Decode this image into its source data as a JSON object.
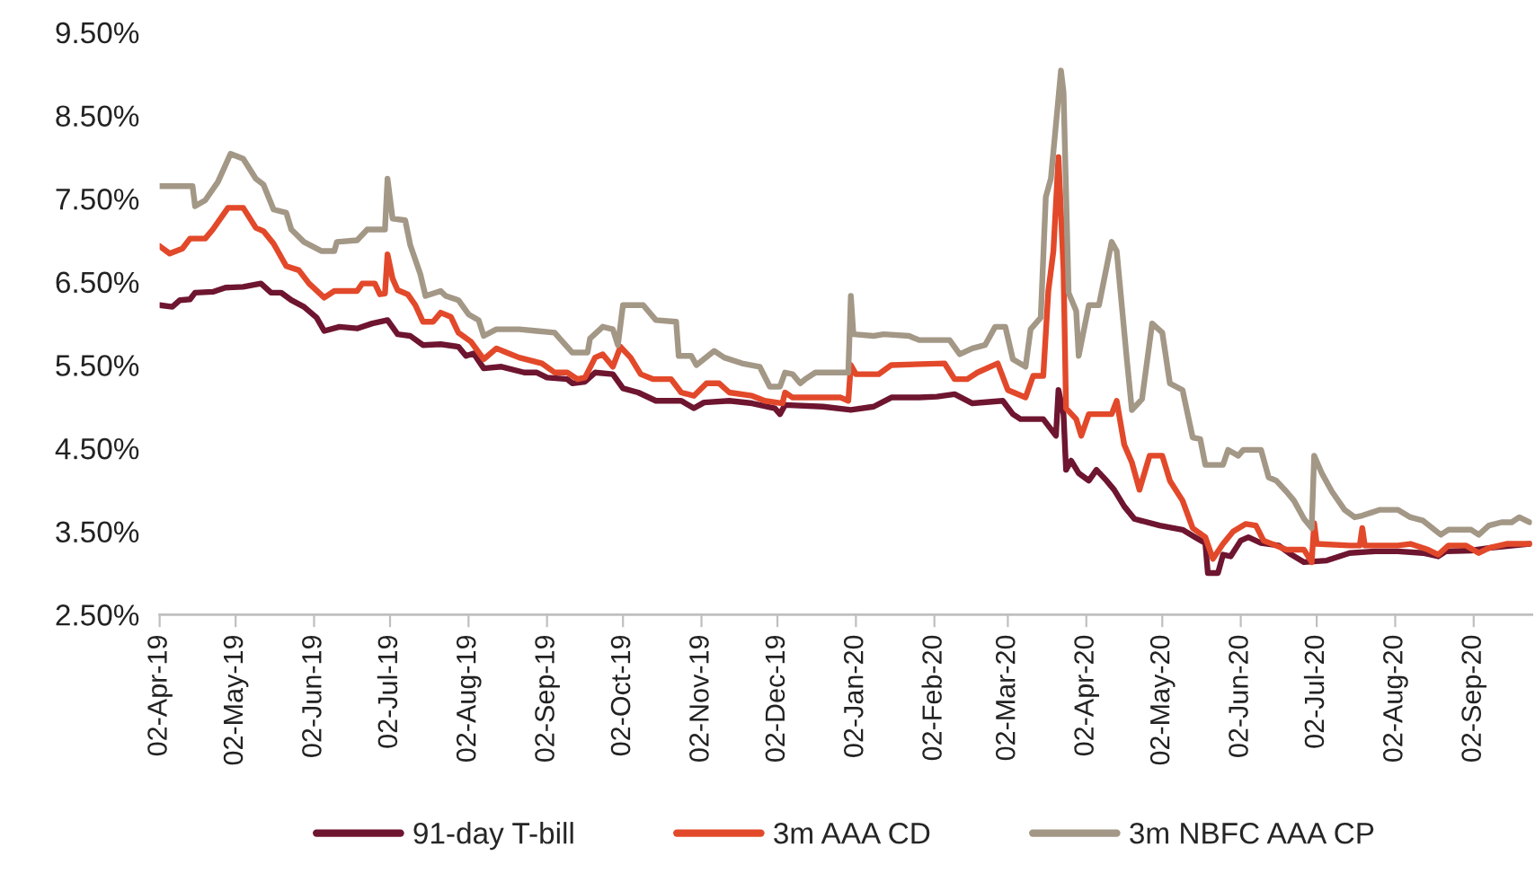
{
  "chart_data": {
    "type": "line",
    "xlim": [
      "2019-04-02",
      "2020-09-25"
    ],
    "xticks": [
      {
        "value": "2019-04-02",
        "label": "02-Apr-19"
      },
      {
        "value": "2019-05-02",
        "label": "02-May-19"
      },
      {
        "value": "2019-06-02",
        "label": "02-Jun-19"
      },
      {
        "value": "2019-07-02",
        "label": "02-Jul-19"
      },
      {
        "value": "2019-08-02",
        "label": "02-Aug-19"
      },
      {
        "value": "2019-09-02",
        "label": "02-Sep-19"
      },
      {
        "value": "2019-10-02",
        "label": "02-Oct-19"
      },
      {
        "value": "2019-11-02",
        "label": "02-Nov-19"
      },
      {
        "value": "2019-12-02",
        "label": "02-Dec-19"
      },
      {
        "value": "2020-01-02",
        "label": "02-Jan-20"
      },
      {
        "value": "2020-02-02",
        "label": "02-Feb-20"
      },
      {
        "value": "2020-03-02",
        "label": "02-Mar-20"
      },
      {
        "value": "2020-04-02",
        "label": "02-Apr-20"
      },
      {
        "value": "2020-05-02",
        "label": "02-May-20"
      },
      {
        "value": "2020-06-02",
        "label": "02-Jun-20"
      },
      {
        "value": "2020-07-02",
        "label": "02-Jul-20"
      },
      {
        "value": "2020-08-02",
        "label": "02-Aug-20"
      },
      {
        "value": "2020-09-02",
        "label": "02-Sep-20"
      }
    ],
    "ylim": [
      2.5,
      9.5
    ],
    "yticks": [
      {
        "value": 2.5,
        "label": "2.50%"
      },
      {
        "value": 3.5,
        "label": "3.50%"
      },
      {
        "value": 4.5,
        "label": "4.50%"
      },
      {
        "value": 5.5,
        "label": "5.50%"
      },
      {
        "value": 6.5,
        "label": "6.50%"
      },
      {
        "value": 7.5,
        "label": "7.50%"
      },
      {
        "value": 8.5,
        "label": "8.50%"
      },
      {
        "value": 9.5,
        "label": "9.50%"
      }
    ],
    "legend": "bottom",
    "series": [
      {
        "name": "91-day T-bill",
        "color": "#6e1530",
        "x": [
          "2019-04-02",
          "2019-04-07",
          "2019-04-10",
          "2019-04-14",
          "2019-04-16",
          "2019-04-23",
          "2019-04-28",
          "2019-05-05",
          "2019-05-12",
          "2019-05-16",
          "2019-05-20",
          "2019-05-24",
          "2019-05-29",
          "2019-06-03",
          "2019-06-06",
          "2019-06-12",
          "2019-06-19",
          "2019-06-25",
          "2019-07-01",
          "2019-07-05",
          "2019-07-10",
          "2019-07-15",
          "2019-07-22",
          "2019-07-29",
          "2019-08-01",
          "2019-08-04",
          "2019-08-08",
          "2019-08-15",
          "2019-08-24",
          "2019-08-29",
          "2019-09-02",
          "2019-09-10",
          "2019-09-12",
          "2019-09-17",
          "2019-09-21",
          "2019-09-28",
          "2019-10-02",
          "2019-10-08",
          "2019-10-15",
          "2019-10-25",
          "2019-10-30",
          "2019-11-03",
          "2019-11-13",
          "2019-11-22",
          "2019-12-01",
          "2019-12-03",
          "2019-12-05",
          "2019-12-20",
          "2019-12-31",
          "2020-01-09",
          "2020-01-16",
          "2020-01-27",
          "2020-02-03",
          "2020-02-10",
          "2020-02-17",
          "2020-02-29",
          "2020-03-04",
          "2020-03-07",
          "2020-03-16",
          "2020-03-21",
          "2020-03-22",
          "2020-03-24",
          "2020-03-25",
          "2020-03-27",
          "2020-03-30",
          "2020-04-03",
          "2020-04-06",
          "2020-04-10",
          "2020-04-13",
          "2020-04-17",
          "2020-04-21",
          "2020-05-01",
          "2020-05-10",
          "2020-05-15",
          "2020-05-19",
          "2020-05-20",
          "2020-05-24",
          "2020-05-26",
          "2020-05-29",
          "2020-06-02",
          "2020-06-05",
          "2020-06-10",
          "2020-06-17",
          "2020-06-22",
          "2020-06-27",
          "2020-07-06",
          "2020-07-15",
          "2020-07-25",
          "2020-08-03",
          "2020-08-13",
          "2020-08-19",
          "2020-08-22",
          "2020-09-01",
          "2020-09-08",
          "2020-09-24"
        ],
        "values": [
          6.22,
          6.2,
          6.28,
          6.29,
          6.37,
          6.38,
          6.43,
          6.44,
          6.48,
          6.37,
          6.37,
          6.28,
          6.2,
          6.07,
          5.91,
          5.96,
          5.94,
          6.0,
          6.04,
          5.87,
          5.85,
          5.74,
          5.75,
          5.72,
          5.61,
          5.64,
          5.46,
          5.48,
          5.41,
          5.41,
          5.35,
          5.33,
          5.28,
          5.3,
          5.41,
          5.39,
          5.22,
          5.17,
          5.07,
          5.07,
          4.98,
          5.05,
          5.07,
          5.04,
          4.98,
          4.91,
          5.02,
          5.0,
          4.96,
          5.0,
          5.11,
          5.11,
          5.12,
          5.15,
          5.04,
          5.07,
          4.91,
          4.85,
          4.85,
          4.65,
          5.2,
          4.91,
          4.24,
          4.35,
          4.2,
          4.11,
          4.24,
          4.11,
          4.0,
          3.8,
          3.65,
          3.57,
          3.52,
          3.43,
          3.36,
          3.0,
          3.0,
          3.22,
          3.2,
          3.39,
          3.43,
          3.36,
          3.33,
          3.22,
          3.13,
          3.15,
          3.24,
          3.26,
          3.26,
          3.24,
          3.2,
          3.26,
          3.27,
          3.3,
          3.35
        ]
      },
      {
        "name": "3m AAA CD",
        "color": "#e2492a",
        "x": [
          "2019-04-02",
          "2019-04-06",
          "2019-04-11",
          "2019-04-14",
          "2019-04-20",
          "2019-04-23",
          "2019-04-29",
          "2019-05-05",
          "2019-05-10",
          "2019-05-13",
          "2019-05-17",
          "2019-05-22",
          "2019-05-27",
          "2019-05-31",
          "2019-06-06",
          "2019-06-10",
          "2019-06-19",
          "2019-06-21",
          "2019-06-26",
          "2019-06-28",
          "2019-06-30",
          "2019-07-01",
          "2019-07-03",
          "2019-07-05",
          "2019-07-09",
          "2019-07-12",
          "2019-07-15",
          "2019-07-19",
          "2019-07-22",
          "2019-07-26",
          "2019-07-29",
          "2019-08-03",
          "2019-08-08",
          "2019-08-13",
          "2019-08-17",
          "2019-08-22",
          "2019-08-31",
          "2019-09-05",
          "2019-09-10",
          "2019-09-14",
          "2019-09-17",
          "2019-09-21",
          "2019-09-24",
          "2019-09-28",
          "2019-10-01",
          "2019-10-05",
          "2019-10-09",
          "2019-10-14",
          "2019-10-21",
          "2019-10-25",
          "2019-10-30",
          "2019-11-04",
          "2019-11-09",
          "2019-11-13",
          "2019-11-22",
          "2019-11-27",
          "2019-12-04",
          "2019-12-05",
          "2019-12-08",
          "2019-12-27",
          "2019-12-30",
          "2019-12-31",
          "2020-01-02",
          "2020-01-11",
          "2020-01-16",
          "2020-02-06",
          "2020-02-10",
          "2020-02-15",
          "2020-02-19",
          "2020-02-27",
          "2020-03-02",
          "2020-03-09",
          "2020-03-12",
          "2020-03-16",
          "2020-03-18",
          "2020-03-20",
          "2020-03-22",
          "2020-03-24",
          "2020-03-25",
          "2020-03-29",
          "2020-03-31",
          "2020-04-03",
          "2020-04-12",
          "2020-04-14",
          "2020-04-17",
          "2020-04-20",
          "2020-04-23",
          "2020-04-27",
          "2020-05-02",
          "2020-05-05",
          "2020-05-10",
          "2020-05-14",
          "2020-05-19",
          "2020-05-22",
          "2020-05-26",
          "2020-05-30",
          "2020-06-04",
          "2020-06-08",
          "2020-06-11",
          "2020-06-20",
          "2020-06-27",
          "2020-06-30",
          "2020-07-01",
          "2020-07-02",
          "2020-07-15",
          "2020-07-19",
          "2020-07-20",
          "2020-07-21",
          "2020-08-03",
          "2020-08-08",
          "2020-08-15",
          "2020-08-19",
          "2020-08-23",
          "2020-08-30",
          "2020-09-04",
          "2020-09-08",
          "2020-09-15",
          "2020-09-24"
        ],
        "values": [
          6.93,
          6.84,
          6.9,
          7.02,
          7.02,
          7.13,
          7.39,
          7.39,
          7.15,
          7.11,
          6.96,
          6.69,
          6.64,
          6.48,
          6.31,
          6.39,
          6.39,
          6.48,
          6.48,
          6.35,
          6.36,
          6.83,
          6.54,
          6.4,
          6.35,
          6.22,
          6.02,
          6.02,
          6.13,
          6.08,
          5.89,
          5.78,
          5.57,
          5.7,
          5.65,
          5.59,
          5.52,
          5.41,
          5.41,
          5.33,
          5.35,
          5.59,
          5.63,
          5.48,
          5.72,
          5.59,
          5.39,
          5.33,
          5.33,
          5.17,
          5.13,
          5.28,
          5.28,
          5.17,
          5.13,
          5.07,
          5.04,
          5.17,
          5.11,
          5.11,
          5.07,
          5.5,
          5.39,
          5.39,
          5.5,
          5.52,
          5.33,
          5.33,
          5.41,
          5.52,
          5.2,
          5.11,
          5.37,
          5.37,
          6.39,
          6.87,
          8.0,
          6.65,
          4.98,
          4.85,
          4.65,
          4.91,
          4.91,
          5.07,
          4.54,
          4.33,
          4.0,
          4.41,
          4.41,
          4.11,
          3.87,
          3.54,
          3.43,
          3.17,
          3.35,
          3.5,
          3.59,
          3.57,
          3.39,
          3.28,
          3.28,
          3.13,
          3.6,
          3.35,
          3.33,
          3.33,
          3.54,
          3.33,
          3.33,
          3.35,
          3.28,
          3.22,
          3.33,
          3.33,
          3.24,
          3.3,
          3.35,
          3.35
        ]
      },
      {
        "name": "3m NBFC AAA CP",
        "color": "#a39786",
        "x": [
          "2019-04-02",
          "2019-04-15",
          "2019-04-16",
          "2019-04-20",
          "2019-04-25",
          "2019-04-30",
          "2019-05-05",
          "2019-05-10",
          "2019-05-13",
          "2019-05-17",
          "2019-05-22",
          "2019-05-24",
          "2019-05-29",
          "2019-06-05",
          "2019-06-10",
          "2019-06-11",
          "2019-06-19",
          "2019-06-23",
          "2019-06-30",
          "2019-07-01",
          "2019-07-03",
          "2019-07-08",
          "2019-07-10",
          "2019-07-14",
          "2019-07-16",
          "2019-07-22",
          "2019-07-24",
          "2019-07-29",
          "2019-08-02",
          "2019-08-06",
          "2019-08-08",
          "2019-08-13",
          "2019-08-22",
          "2019-08-29",
          "2019-09-05",
          "2019-09-07",
          "2019-09-12",
          "2019-09-18",
          "2019-09-19",
          "2019-09-24",
          "2019-09-28",
          "2019-09-30",
          "2019-10-02",
          "2019-10-10",
          "2019-10-15",
          "2019-10-23",
          "2019-10-24",
          "2019-10-29",
          "2019-10-31",
          "2019-11-07",
          "2019-11-11",
          "2019-11-18",
          "2019-11-25",
          "2019-11-29",
          "2019-12-03",
          "2019-12-05",
          "2019-12-08",
          "2019-12-11",
          "2019-12-13",
          "2019-12-17",
          "2019-12-30",
          "2019-12-31",
          "2020-01-01",
          "2020-01-09",
          "2020-01-13",
          "2020-01-23",
          "2020-01-27",
          "2020-02-08",
          "2020-02-12",
          "2020-02-17",
          "2020-02-22",
          "2020-02-26",
          "2020-03-01",
          "2020-03-04",
          "2020-03-09",
          "2020-03-11",
          "2020-03-15",
          "2020-03-17",
          "2020-03-19",
          "2020-03-23",
          "2020-03-24",
          "2020-03-26",
          "2020-03-29",
          "2020-03-30",
          "2020-04-03",
          "2020-04-07",
          "2020-04-12",
          "2020-04-14",
          "2020-04-18",
          "2020-04-20",
          "2020-04-24",
          "2020-04-28",
          "2020-05-02",
          "2020-05-05",
          "2020-05-10",
          "2020-05-14",
          "2020-05-17",
          "2020-05-19",
          "2020-05-26",
          "2020-05-28",
          "2020-06-01",
          "2020-06-03",
          "2020-06-10",
          "2020-06-13",
          "2020-06-16",
          "2020-06-20",
          "2020-06-23",
          "2020-06-27",
          "2020-06-30",
          "2020-07-01",
          "2020-07-04",
          "2020-07-08",
          "2020-07-13",
          "2020-07-17",
          "2020-07-20",
          "2020-07-27",
          "2020-08-03",
          "2020-08-08",
          "2020-08-13",
          "2020-08-20",
          "2020-08-23",
          "2020-09-01",
          "2020-09-04",
          "2020-09-08",
          "2020-09-13",
          "2020-09-17",
          "2020-09-20",
          "2020-09-24"
        ],
        "values": [
          7.65,
          7.65,
          7.41,
          7.48,
          7.7,
          8.04,
          7.98,
          7.74,
          7.67,
          7.37,
          7.33,
          7.13,
          6.98,
          6.87,
          6.87,
          6.98,
          7.0,
          7.13,
          7.13,
          7.74,
          7.26,
          7.24,
          6.94,
          6.59,
          6.33,
          6.39,
          6.33,
          6.28,
          6.11,
          6.04,
          5.85,
          5.93,
          5.93,
          5.91,
          5.89,
          5.82,
          5.65,
          5.65,
          5.82,
          5.96,
          5.93,
          5.74,
          6.22,
          6.22,
          6.04,
          6.02,
          5.61,
          5.61,
          5.5,
          5.67,
          5.59,
          5.52,
          5.48,
          5.24,
          5.24,
          5.41,
          5.39,
          5.28,
          5.33,
          5.41,
          5.41,
          6.33,
          5.87,
          5.85,
          5.87,
          5.85,
          5.8,
          5.8,
          5.63,
          5.7,
          5.74,
          5.96,
          5.96,
          5.57,
          5.48,
          5.93,
          6.07,
          7.52,
          7.74,
          9.04,
          8.78,
          6.37,
          6.15,
          5.61,
          6.22,
          6.22,
          6.98,
          6.87,
          5.57,
          4.96,
          5.09,
          6.0,
          5.89,
          5.28,
          5.2,
          4.63,
          4.61,
          4.3,
          4.3,
          4.48,
          4.41,
          4.48,
          4.48,
          4.15,
          4.11,
          3.98,
          3.87,
          3.65,
          3.54,
          4.41,
          4.2,
          3.98,
          3.76,
          3.67,
          3.69,
          3.76,
          3.76,
          3.67,
          3.63,
          3.46,
          3.52,
          3.52,
          3.46,
          3.57,
          3.61,
          3.61,
          3.67,
          3.61
        ]
      }
    ]
  }
}
